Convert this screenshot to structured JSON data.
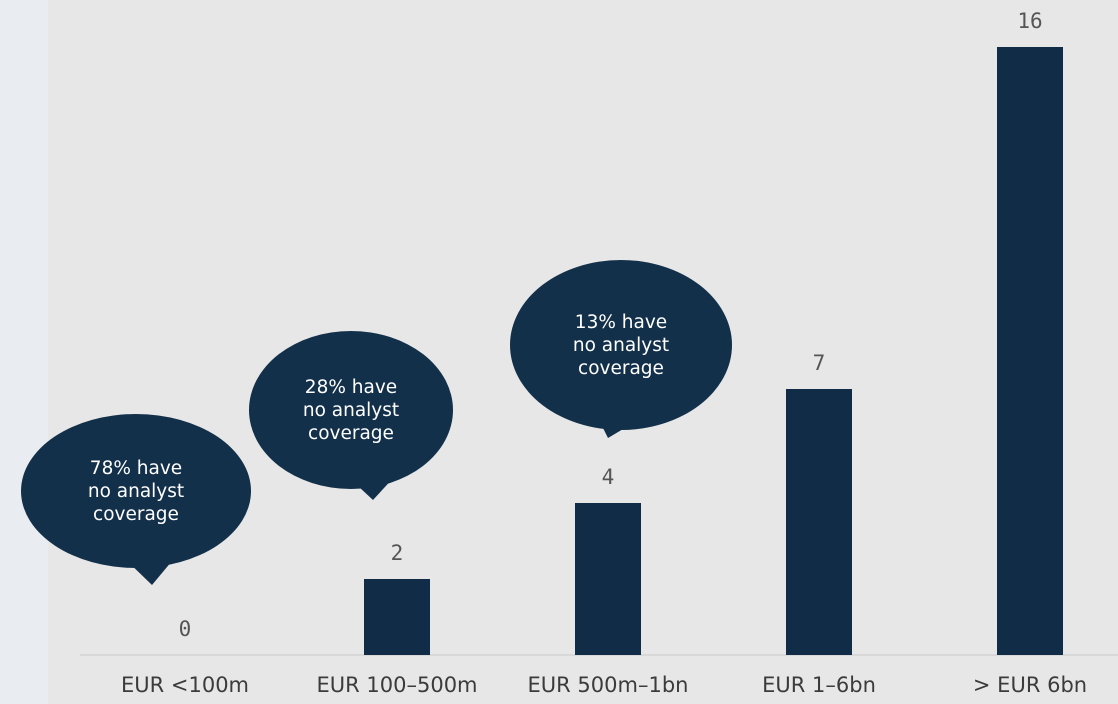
{
  "chart_data": {
    "type": "bar",
    "categories": [
      "EUR <100m",
      "EUR 100–500m",
      "EUR 500m–1bn",
      "EUR 1–6bn",
      "> EUR 6bn"
    ],
    "values": [
      0,
      2,
      4,
      7,
      16
    ],
    "data_labels": [
      "0",
      "2",
      "4",
      "7",
      "16"
    ],
    "ylim": [
      0,
      16
    ],
    "grid": false,
    "bar_color": "#112c47",
    "annotations": [
      {
        "category": "EUR <100m",
        "lines": [
          "78% have",
          "no analyst",
          "coverage"
        ]
      },
      {
        "category": "EUR 100–500m",
        "lines": [
          "28% have",
          "no analyst",
          "coverage"
        ]
      },
      {
        "category": "EUR 500m–1bn",
        "lines": [
          "13% have",
          "no analyst",
          "coverage"
        ]
      }
    ],
    "annotation_color": "#13304b"
  }
}
